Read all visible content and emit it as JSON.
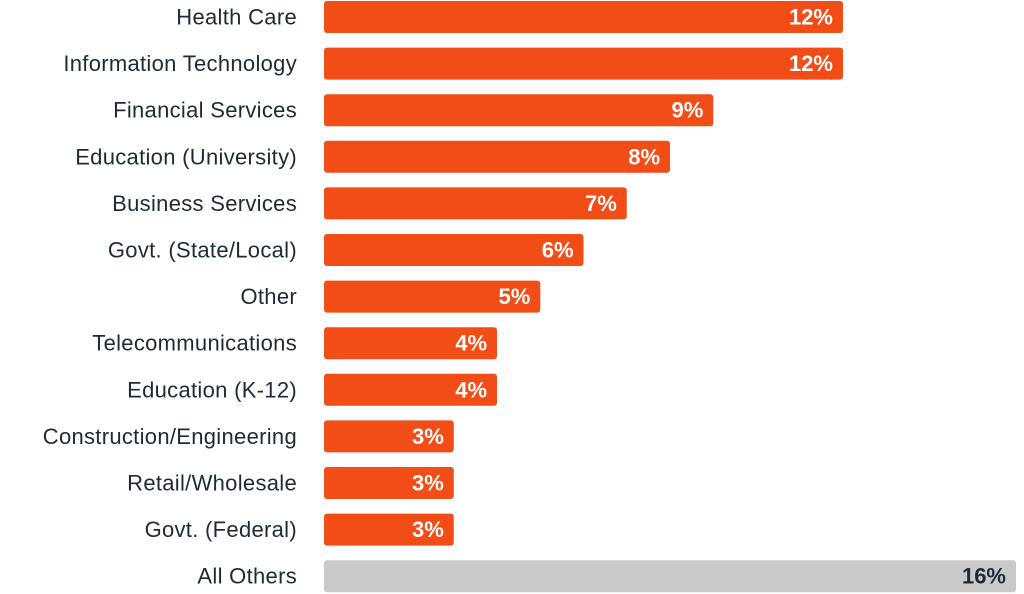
{
  "chart_data": {
    "type": "bar",
    "orientation": "horizontal",
    "categories": [
      "Health Care",
      "Information Technology",
      "Financial Services",
      "Education (University)",
      "Business Services",
      "Govt. (State/Local)",
      "Other",
      "Telecommunications",
      "Education (K-12)",
      "Construction/Engineering",
      "Retail/Wholesale",
      "Govt. (Federal)",
      "All Others"
    ],
    "values": [
      12,
      12,
      9,
      8,
      7,
      6,
      5,
      4,
      4,
      3,
      3,
      3,
      16
    ],
    "value_labels": [
      "12%",
      "12%",
      "9%",
      "8%",
      "7%",
      "6%",
      "5%",
      "4%",
      "4%",
      "3%",
      "3%",
      "3%",
      "16%"
    ],
    "xlim": [
      0,
      16
    ],
    "grid": false,
    "legend": "none",
    "colors": {
      "bar": "#f24c17",
      "bar_highlight": "#c9c9c9",
      "label_on_bar": "#ffffff",
      "label_on_highlight": "#1f2a37",
      "category_text": "#1f2a37"
    },
    "highlight_index": 12
  }
}
